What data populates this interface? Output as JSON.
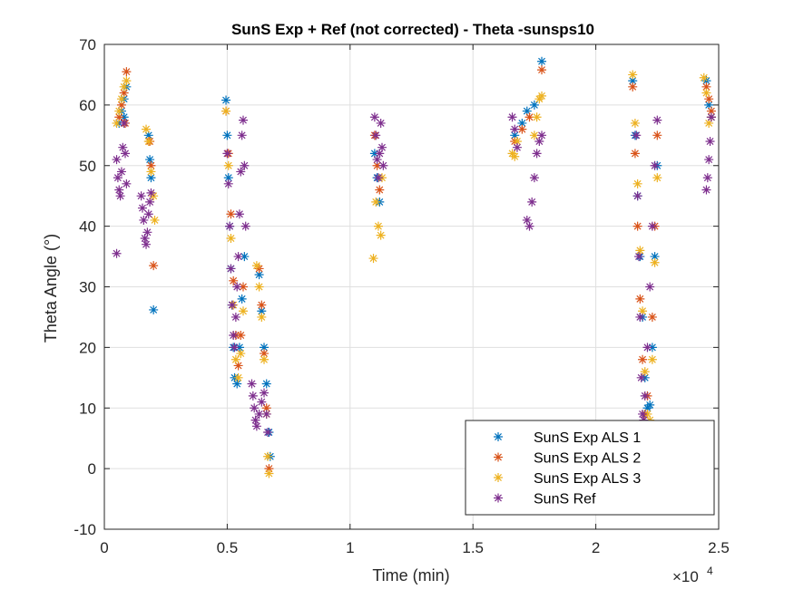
{
  "chart_data": {
    "type": "scatter",
    "title": "SunS Exp + Ref (not corrected) - Theta -sunsps10",
    "xlabel": "Time (min)",
    "ylabel": "Theta Angle (°)",
    "xlim": [
      0,
      25000
    ],
    "ylim": [
      -10,
      70
    ],
    "x_exponent_label": "×10",
    "x_exponent_power": "4",
    "x_ticks": [
      0,
      5000,
      10000,
      15000,
      20000,
      25000
    ],
    "x_tick_labels": [
      "0",
      "0.5",
      "1",
      "1.5",
      "2",
      "2.5"
    ],
    "y_ticks": [
      -10,
      0,
      10,
      20,
      30,
      40,
      50,
      60,
      70
    ],
    "y_tick_labels": [
      "-10",
      "0",
      "10",
      "20",
      "30",
      "40",
      "50",
      "60",
      "70"
    ],
    "grid": true,
    "legend_position": "bottom-right",
    "marker": "asterisk",
    "series": [
      {
        "name": "SunS Exp ALS 1",
        "color": "#0072BD",
        "points": [
          [
            600,
            57
          ],
          [
            700,
            59
          ],
          [
            800,
            61
          ],
          [
            900,
            63
          ],
          [
            800,
            58
          ],
          [
            1800,
            55
          ],
          [
            1850,
            51
          ],
          [
            1900,
            48
          ],
          [
            2000,
            26.2
          ],
          [
            4950,
            60.8
          ],
          [
            5000,
            55
          ],
          [
            5050,
            48
          ],
          [
            5100,
            40
          ],
          [
            5150,
            33
          ],
          [
            5200,
            27
          ],
          [
            5250,
            20
          ],
          [
            5300,
            15
          ],
          [
            5400,
            14
          ],
          [
            5500,
            20
          ],
          [
            5600,
            28
          ],
          [
            5700,
            35
          ],
          [
            6300,
            32
          ],
          [
            6400,
            26
          ],
          [
            6500,
            20
          ],
          [
            6600,
            14
          ],
          [
            6700,
            6
          ],
          [
            6750,
            2
          ],
          [
            11000,
            52
          ],
          [
            11100,
            48
          ],
          [
            11200,
            44
          ],
          [
            16700,
            55
          ],
          [
            17000,
            57
          ],
          [
            17200,
            59
          ],
          [
            17500,
            60
          ],
          [
            17800,
            67.2
          ],
          [
            21500,
            64
          ],
          [
            21600,
            55
          ],
          [
            21700,
            45
          ],
          [
            21800,
            35
          ],
          [
            21900,
            25
          ],
          [
            22000,
            15
          ],
          [
            22100,
            10
          ],
          [
            22200,
            10.5
          ],
          [
            22300,
            20
          ],
          [
            22400,
            35
          ],
          [
            22500,
            50
          ],
          [
            24500,
            64
          ],
          [
            24600,
            60
          ],
          [
            24700,
            58
          ]
        ]
      },
      {
        "name": "SunS Exp ALS 2",
        "color": "#D95319",
        "points": [
          [
            600,
            58
          ],
          [
            700,
            60
          ],
          [
            800,
            62
          ],
          [
            900,
            65.5
          ],
          [
            850,
            57
          ],
          [
            1850,
            54
          ],
          [
            1900,
            50
          ],
          [
            2000,
            33.5
          ],
          [
            4950,
            59
          ],
          [
            5050,
            52
          ],
          [
            5150,
            42
          ],
          [
            5250,
            31
          ],
          [
            5350,
            22
          ],
          [
            5450,
            17
          ],
          [
            5550,
            22
          ],
          [
            5650,
            30
          ],
          [
            6300,
            33
          ],
          [
            6400,
            27
          ],
          [
            6500,
            19
          ],
          [
            6600,
            10
          ],
          [
            6700,
            0
          ],
          [
            11000,
            55
          ],
          [
            11100,
            50
          ],
          [
            11200,
            46
          ],
          [
            16700,
            54
          ],
          [
            17000,
            56
          ],
          [
            17300,
            58
          ],
          [
            17800,
            65.8
          ],
          [
            21500,
            63
          ],
          [
            21600,
            52
          ],
          [
            21700,
            40
          ],
          [
            21800,
            28
          ],
          [
            21900,
            18
          ],
          [
            22000,
            9
          ],
          [
            22100,
            12
          ],
          [
            22300,
            25
          ],
          [
            22400,
            40
          ],
          [
            22500,
            55
          ],
          [
            24500,
            63
          ],
          [
            24600,
            61
          ],
          [
            24700,
            59
          ]
        ]
      },
      {
        "name": "SunS Exp ALS 3",
        "color": "#EDB120",
        "points": [
          [
            500,
            57
          ],
          [
            600,
            59
          ],
          [
            700,
            61
          ],
          [
            800,
            63
          ],
          [
            900,
            64
          ],
          [
            1700,
            56
          ],
          [
            1800,
            54
          ],
          [
            1900,
            49
          ],
          [
            2000,
            45
          ],
          [
            2050,
            41
          ],
          [
            4950,
            59
          ],
          [
            5050,
            50
          ],
          [
            5150,
            38
          ],
          [
            5250,
            27
          ],
          [
            5350,
            18
          ],
          [
            5450,
            15
          ],
          [
            5550,
            19
          ],
          [
            5650,
            26
          ],
          [
            6200,
            33.5
          ],
          [
            6300,
            30
          ],
          [
            6400,
            25
          ],
          [
            6500,
            18
          ],
          [
            6600,
            9
          ],
          [
            6650,
            2
          ],
          [
            6700,
            -0.8
          ],
          [
            10950,
            34.7
          ],
          [
            11050,
            44
          ],
          [
            11150,
            40
          ],
          [
            11250,
            38.5
          ],
          [
            11300,
            48
          ],
          [
            16600,
            52
          ],
          [
            16700,
            51.5
          ],
          [
            16800,
            54
          ],
          [
            17500,
            55
          ],
          [
            17600,
            58
          ],
          [
            17700,
            61
          ],
          [
            17800,
            61.5
          ],
          [
            21500,
            65
          ],
          [
            21600,
            57
          ],
          [
            21700,
            47
          ],
          [
            21800,
            36
          ],
          [
            21900,
            26
          ],
          [
            22000,
            16
          ],
          [
            22100,
            9
          ],
          [
            22200,
            8
          ],
          [
            22300,
            18
          ],
          [
            22400,
            34
          ],
          [
            22500,
            48
          ],
          [
            24400,
            64.5
          ],
          [
            24500,
            62
          ],
          [
            24600,
            57
          ],
          [
            24700,
            58
          ]
        ]
      },
      {
        "name": "SunS Ref",
        "color": "#7E2F8E",
        "points": [
          [
            500,
            35.5
          ],
          [
            500,
            51
          ],
          [
            550,
            48
          ],
          [
            600,
            46
          ],
          [
            650,
            45
          ],
          [
            700,
            49
          ],
          [
            750,
            53
          ],
          [
            800,
            57
          ],
          [
            850,
            52
          ],
          [
            900,
            47
          ],
          [
            1500,
            45
          ],
          [
            1550,
            43
          ],
          [
            1600,
            41
          ],
          [
            1650,
            38
          ],
          [
            1700,
            37
          ],
          [
            1750,
            39
          ],
          [
            1800,
            42
          ],
          [
            1850,
            44
          ],
          [
            1900,
            45.5
          ],
          [
            5000,
            52
          ],
          [
            5050,
            47
          ],
          [
            5100,
            40
          ],
          [
            5150,
            33
          ],
          [
            5200,
            27
          ],
          [
            5250,
            22
          ],
          [
            5300,
            20
          ],
          [
            5350,
            25
          ],
          [
            5400,
            30
          ],
          [
            5450,
            35
          ],
          [
            5500,
            42
          ],
          [
            5550,
            49
          ],
          [
            5600,
            55
          ],
          [
            5650,
            57.5
          ],
          [
            5700,
            50
          ],
          [
            5750,
            40
          ],
          [
            6000,
            14
          ],
          [
            6050,
            12
          ],
          [
            6100,
            10
          ],
          [
            6150,
            8
          ],
          [
            6200,
            7
          ],
          [
            6300,
            9
          ],
          [
            6400,
            11
          ],
          [
            6500,
            12.5
          ],
          [
            6600,
            9
          ],
          [
            6650,
            6
          ],
          [
            11000,
            58
          ],
          [
            11050,
            55
          ],
          [
            11100,
            51
          ],
          [
            11150,
            48
          ],
          [
            11200,
            52
          ],
          [
            11250,
            57
          ],
          [
            11300,
            53
          ],
          [
            11350,
            50
          ],
          [
            16600,
            58
          ],
          [
            16700,
            56
          ],
          [
            16800,
            53
          ],
          [
            17200,
            41
          ],
          [
            17300,
            40
          ],
          [
            17400,
            44
          ],
          [
            17500,
            48
          ],
          [
            17600,
            52
          ],
          [
            17700,
            54
          ],
          [
            17800,
            55
          ],
          [
            21650,
            55
          ],
          [
            21700,
            45
          ],
          [
            21750,
            35
          ],
          [
            21800,
            25
          ],
          [
            21850,
            15
          ],
          [
            21900,
            9
          ],
          [
            21950,
            8
          ],
          [
            22000,
            12
          ],
          [
            22100,
            20
          ],
          [
            22200,
            30
          ],
          [
            22300,
            40
          ],
          [
            22400,
            50
          ],
          [
            22500,
            57.5
          ],
          [
            24500,
            46
          ],
          [
            24550,
            48
          ],
          [
            24600,
            51
          ],
          [
            24650,
            54
          ],
          [
            24700,
            58
          ]
        ]
      }
    ]
  }
}
